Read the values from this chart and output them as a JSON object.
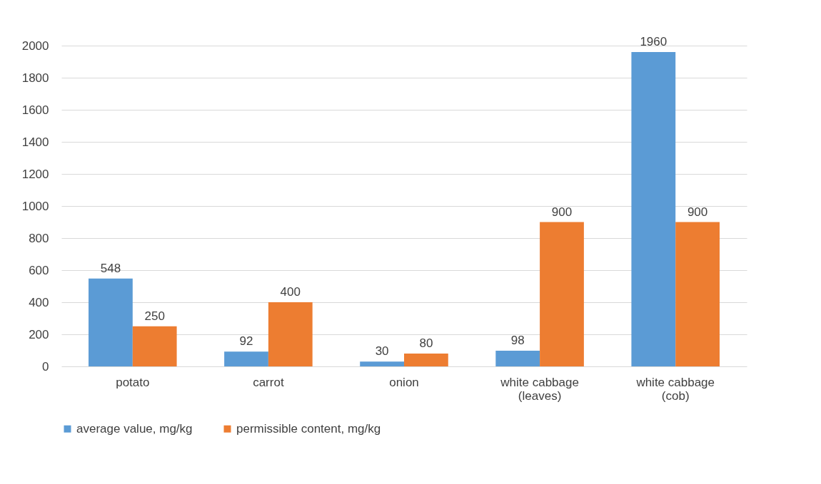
{
  "chart_data": {
    "type": "bar",
    "categories": [
      "potato",
      "carrot",
      "onion",
      "white cabbage (leaves)",
      "white cabbage (cob)"
    ],
    "series": [
      {
        "name": "average value, mg/kg",
        "color": "#5b9bd5",
        "values": [
          548,
          92,
          30,
          98,
          1960
        ]
      },
      {
        "name": "permissible content, mg/kg",
        "color": "#ed7d31",
        "values": [
          250,
          400,
          80,
          900,
          900
        ]
      }
    ],
    "ylim": [
      0,
      2000
    ],
    "yticks": [
      0,
      200,
      400,
      600,
      800,
      1000,
      1200,
      1400,
      1600,
      1800,
      2000
    ],
    "grid": "y",
    "legend": "bottom",
    "data_labels": true
  }
}
